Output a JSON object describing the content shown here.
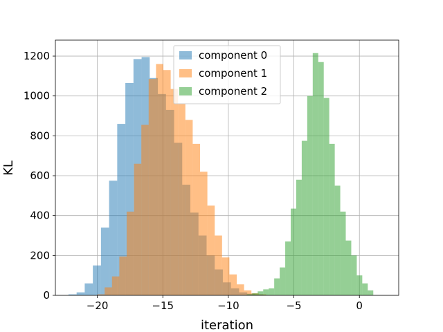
{
  "chart_data": {
    "type": "histogram",
    "xlabel": "iteration",
    "ylabel": "KL",
    "xlim": [
      -23.2,
      3.0
    ],
    "ylim": [
      0,
      1280
    ],
    "x_ticks": [
      -20,
      -15,
      -10,
      -5,
      0
    ],
    "x_tick_labels": [
      "−20",
      "−15",
      "−10",
      "−5",
      "0"
    ],
    "y_ticks": [
      0,
      200,
      400,
      600,
      800,
      1000,
      1200
    ],
    "y_tick_labels": [
      "0",
      "200",
      "400",
      "600",
      "800",
      "1000",
      "1200"
    ],
    "grid": true,
    "legend_position": "upper center",
    "series": [
      {
        "name": "component 0",
        "color": "#1f77b4",
        "alpha": 0.5,
        "bins": [
          [
            -22.2,
            -21.58,
            5
          ],
          [
            -21.58,
            -20.96,
            15
          ],
          [
            -20.96,
            -20.34,
            60
          ],
          [
            -20.34,
            -19.72,
            150
          ],
          [
            -19.72,
            -19.1,
            340
          ],
          [
            -19.1,
            -18.48,
            575
          ],
          [
            -18.48,
            -17.86,
            860
          ],
          [
            -17.86,
            -17.24,
            1065
          ],
          [
            -17.24,
            -16.62,
            1185
          ],
          [
            -16.62,
            -16.0,
            1195
          ],
          [
            -16.0,
            -15.38,
            1090
          ],
          [
            -15.38,
            -14.76,
            1010
          ],
          [
            -14.76,
            -14.14,
            930
          ],
          [
            -14.14,
            -13.52,
            765
          ],
          [
            -13.52,
            -12.9,
            555
          ],
          [
            -12.9,
            -12.28,
            415
          ],
          [
            -12.28,
            -11.66,
            300
          ],
          [
            -11.66,
            -11.04,
            200
          ],
          [
            -11.04,
            -10.42,
            130
          ],
          [
            -10.42,
            -9.8,
            65
          ],
          [
            -9.8,
            -9.18,
            35
          ],
          [
            -9.18,
            -8.56,
            15
          ],
          [
            -8.56,
            -7.94,
            8
          ],
          [
            -7.94,
            -7.32,
            5
          ]
        ]
      },
      {
        "name": "component 1",
        "color": "#ff7f0e",
        "alpha": 0.5,
        "bins": [
          [
            -20.0,
            -19.44,
            5
          ],
          [
            -19.44,
            -18.88,
            40
          ],
          [
            -18.88,
            -18.32,
            95
          ],
          [
            -18.32,
            -17.76,
            195
          ],
          [
            -17.76,
            -17.2,
            420
          ],
          [
            -17.2,
            -16.64,
            660
          ],
          [
            -16.64,
            -16.08,
            855
          ],
          [
            -16.08,
            -15.52,
            1085
          ],
          [
            -15.52,
            -14.96,
            1160
          ],
          [
            -14.96,
            -14.4,
            1130
          ],
          [
            -14.4,
            -13.84,
            1035
          ],
          [
            -13.84,
            -13.28,
            960
          ],
          [
            -13.28,
            -12.72,
            880
          ],
          [
            -12.72,
            -12.16,
            760
          ],
          [
            -12.16,
            -11.6,
            620
          ],
          [
            -11.6,
            -11.04,
            450
          ],
          [
            -11.04,
            -10.48,
            300
          ],
          [
            -10.48,
            -9.92,
            190
          ],
          [
            -9.92,
            -9.36,
            105
          ],
          [
            -9.36,
            -8.8,
            55
          ],
          [
            -8.8,
            -8.24,
            25
          ],
          [
            -8.24,
            -7.68,
            10
          ],
          [
            -7.68,
            -7.12,
            5
          ]
        ]
      },
      {
        "name": "component 2",
        "color": "#2ca02c",
        "alpha": 0.5,
        "bins": [
          [
            -8.6,
            -8.18,
            5
          ],
          [
            -8.18,
            -7.76,
            10
          ],
          [
            -7.76,
            -7.34,
            20
          ],
          [
            -7.34,
            -6.92,
            30
          ],
          [
            -6.92,
            -6.5,
            35
          ],
          [
            -6.5,
            -6.08,
            85
          ],
          [
            -6.08,
            -5.66,
            140
          ],
          [
            -5.66,
            -5.24,
            270
          ],
          [
            -5.24,
            -4.82,
            435
          ],
          [
            -4.82,
            -4.4,
            580
          ],
          [
            -4.4,
            -3.98,
            775
          ],
          [
            -3.98,
            -3.56,
            1000
          ],
          [
            -3.56,
            -3.14,
            1215
          ],
          [
            -3.14,
            -2.72,
            1170
          ],
          [
            -2.72,
            -2.3,
            990
          ],
          [
            -2.3,
            -1.88,
            760
          ],
          [
            -1.88,
            -1.46,
            550
          ],
          [
            -1.46,
            -1.04,
            420
          ],
          [
            -1.04,
            -0.62,
            275
          ],
          [
            -0.62,
            -0.2,
            200
          ],
          [
            -0.2,
            0.22,
            100
          ],
          [
            0.22,
            0.64,
            60
          ],
          [
            0.64,
            1.06,
            25
          ]
        ]
      }
    ]
  }
}
